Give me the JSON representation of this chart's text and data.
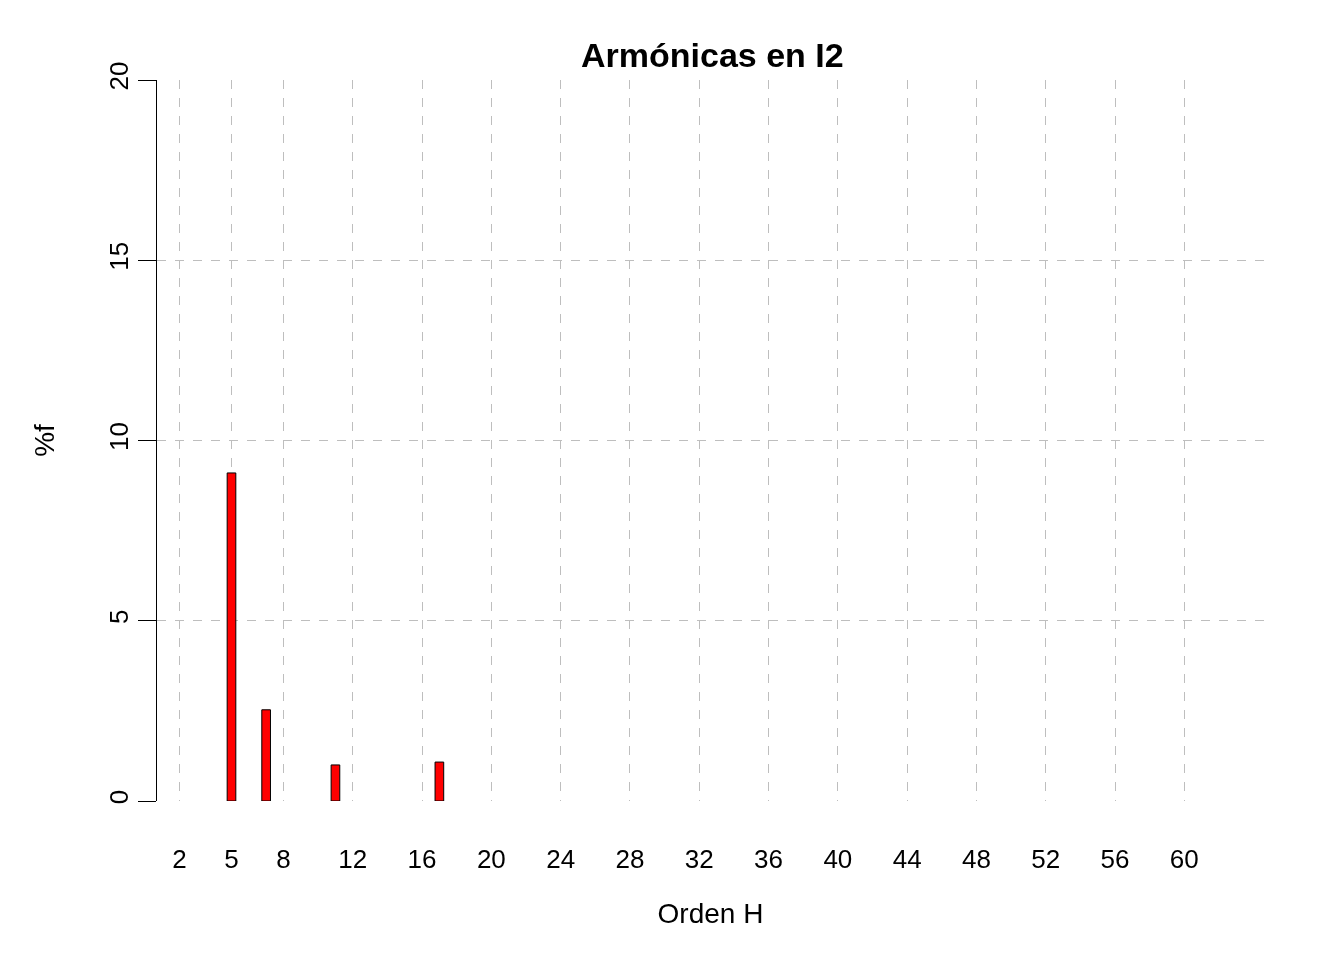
{
  "chart_data": {
    "type": "bar",
    "title": "Armónicas en I2",
    "xlabel": "Orden H",
    "ylabel": "%f",
    "categories": [
      "2",
      null,
      null,
      "5",
      null,
      null,
      "8",
      null,
      null,
      null,
      "12",
      null,
      null,
      null,
      "16",
      null,
      null,
      null,
      "20",
      null,
      null,
      null,
      "24",
      null,
      null,
      null,
      "28",
      null,
      null,
      null,
      "32",
      null,
      null,
      null,
      "36",
      null,
      null,
      null,
      "40",
      null,
      null,
      null,
      "44",
      null,
      null,
      null,
      "48",
      null,
      null,
      null,
      "52",
      null,
      null,
      null,
      "56",
      null,
      null,
      null,
      "60",
      null,
      null,
      null
    ],
    "values": [
      0,
      0,
      0,
      9.1,
      0,
      2.53,
      0,
      0,
      0,
      1.0,
      0,
      0,
      0,
      0,
      0,
      1.08,
      0,
      0,
      0,
      0,
      0,
      0,
      0,
      0,
      0,
      0,
      0,
      0,
      0,
      0,
      0,
      0,
      0,
      0,
      0,
      0,
      0,
      0,
      0,
      0,
      0,
      0,
      0,
      0,
      0,
      0,
      0,
      0,
      0,
      0,
      0,
      0,
      0,
      0,
      0,
      0,
      0,
      0,
      0,
      0,
      0,
      0
    ],
    "color": "#ff0000",
    "ylim": [
      0,
      20
    ],
    "yticks": [
      0,
      5,
      10,
      15,
      20
    ],
    "grid": true
  }
}
